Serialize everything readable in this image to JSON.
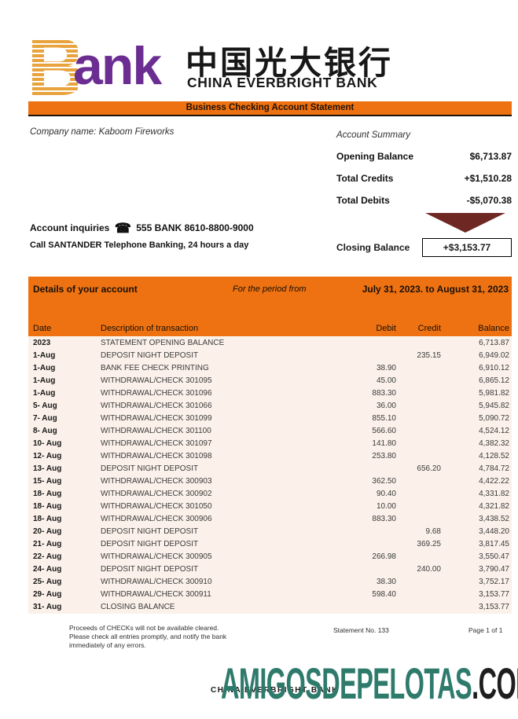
{
  "colors": {
    "orange": "#EE7211",
    "logo_gold": "#E8A33D",
    "logo_purple": "#6B2D91",
    "row_background": "#FBF1EA",
    "arrow_maroon": "#6F2724",
    "watermark_teal": "#2E7B6C"
  },
  "header": {
    "logo_b": "B",
    "logo_rest": "ank",
    "bank_name_cn": "中国光大银行",
    "bank_name_en": "CHINA EVERBRIGHT BANK",
    "statement_title": "Business Checking Account Statement"
  },
  "info": {
    "company_line": "Company name: Kaboom Fireworks",
    "inquiries_prefix": "Account inquiries",
    "phone_icon": "☎",
    "inquiries_suffix": "555 BANK  8610-8800-9000",
    "telebank_line": "Call SANTANDER Telephone Banking, 24 hours a day"
  },
  "summary": {
    "title": "Account Summary",
    "rows": [
      {
        "label": "Opening Balance",
        "value": "$6,713.87"
      },
      {
        "label": "Total Credits",
        "value": "+$1,510.28"
      },
      {
        "label": "Total Debits",
        "value": "-$5,070.38"
      }
    ],
    "closing_label": "Closing Balance",
    "closing_value": "+$3,153.77"
  },
  "details": {
    "title": "Details of your account",
    "period_label": "For the period from",
    "period_value": "July 31, 2023. to August 31, 2023",
    "columns": [
      "Date",
      "Description of transaction",
      "Debit",
      "Credit",
      "Balance"
    ]
  },
  "transactions": [
    {
      "date": "2023",
      "desc": "STATEMENT OPENING BALANCE",
      "debit": "",
      "credit": "",
      "balance": "6,713.87"
    },
    {
      "date": "1-Aug",
      "desc": "DEPOSIT NIGHT DEPOSIT",
      "debit": "",
      "credit": "235.15",
      "balance": "6,949.02"
    },
    {
      "date": "1-Aug",
      "desc": "BANK FEE CHECK PRINTING",
      "debit": "38.90",
      "credit": "",
      "balance": "6,910.12"
    },
    {
      "date": "1-Aug",
      "desc": "WITHDRAWAL/CHECK 301095",
      "debit": "45.00",
      "credit": "",
      "balance": "6,865.12"
    },
    {
      "date": "1-Aug",
      "desc": "WITHDRAWAL/CHECK 301096",
      "debit": "883.30",
      "credit": "",
      "balance": "5,981.82"
    },
    {
      "date": "5- Aug",
      "desc": "WITHDRAWAL/CHECK 301066",
      "debit": "36.00",
      "credit": "",
      "balance": "5,945.82"
    },
    {
      "date": "7- Aug",
      "desc": "WITHDRAWAL/CHECK 301099",
      "debit": "855.10",
      "credit": "",
      "balance": "5,090.72"
    },
    {
      "date": "8- Aug",
      "desc": "WITHDRAWAL/CHECK 301100",
      "debit": "566.60",
      "credit": "",
      "balance": "4,524.12"
    },
    {
      "date": "10- Aug",
      "desc": "WITHDRAWAL/CHECK 301097",
      "debit": "141.80",
      "credit": "",
      "balance": "4,382.32"
    },
    {
      "date": "12- Aug",
      "desc": "WITHDRAWAL/CHECK 301098",
      "debit": "253.80",
      "credit": "",
      "balance": "4,128.52"
    },
    {
      "date": "13- Aug",
      "desc": "DEPOSIT NIGHT DEPOSIT",
      "debit": "",
      "credit": "656.20",
      "balance": "4,784.72"
    },
    {
      "date": "15- Aug",
      "desc": "WITHDRAWAL/CHECK 300903",
      "debit": "362.50",
      "credit": "",
      "balance": "4,422.22"
    },
    {
      "date": "18- Aug",
      "desc": "WITHDRAWAL/CHECK 300902",
      "debit": "90.40",
      "credit": "",
      "balance": "4,331.82"
    },
    {
      "date": "18- Aug",
      "desc": "WITHDRAWAL/CHECK 301050",
      "debit": "10.00",
      "credit": "",
      "balance": "4,321.82"
    },
    {
      "date": "18- Aug",
      "desc": "WITHDRAWAL/CHECK 300906",
      "debit": "883.30",
      "credit": "",
      "balance": "3,438.52"
    },
    {
      "date": "20- Aug",
      "desc": "DEPOSIT NIGHT DEPOSIT",
      "debit": "",
      "credit": "9.68",
      "balance": "3,448.20"
    },
    {
      "date": "21- Aug",
      "desc": "DEPOSIT NIGHT DEPOSIT",
      "debit": "",
      "credit": "369.25",
      "balance": "3,817.45"
    },
    {
      "date": "22- Aug",
      "desc": "WITHDRAWAL/CHECK 300905",
      "debit": "266.98",
      "credit": "",
      "balance": "3,550.47"
    },
    {
      "date": "24- Aug",
      "desc": "DEPOSIT NIGHT DEPOSIT",
      "debit": "",
      "credit": "240.00",
      "balance": "3,790.47"
    },
    {
      "date": "25- Aug",
      "desc": "WITHDRAWAL/CHECK 300910",
      "debit": "38.30",
      "credit": "",
      "balance": "3,752.17"
    },
    {
      "date": "29- Aug",
      "desc": "WITHDRAWAL/CHECK 300911",
      "debit": "598.40",
      "credit": "",
      "balance": "3,153.77"
    },
    {
      "date": "31- Aug",
      "desc": "CLOSING BALANCE",
      "debit": "",
      "credit": "",
      "balance": "3,153.77"
    }
  ],
  "footer": {
    "disclaimer": "Proceeds of CHECKs will not be available cleared. Please check all entries promptly, and notify the bank immediately of any errors.",
    "statement_no": "Statement No. 133",
    "page": "Page 1 of 1",
    "bank_small": "CHINA EVERBRIGHT BANK",
    "watermark_main": "AMIGOSDEPELOTAS",
    "watermark_tld": ".COM"
  }
}
